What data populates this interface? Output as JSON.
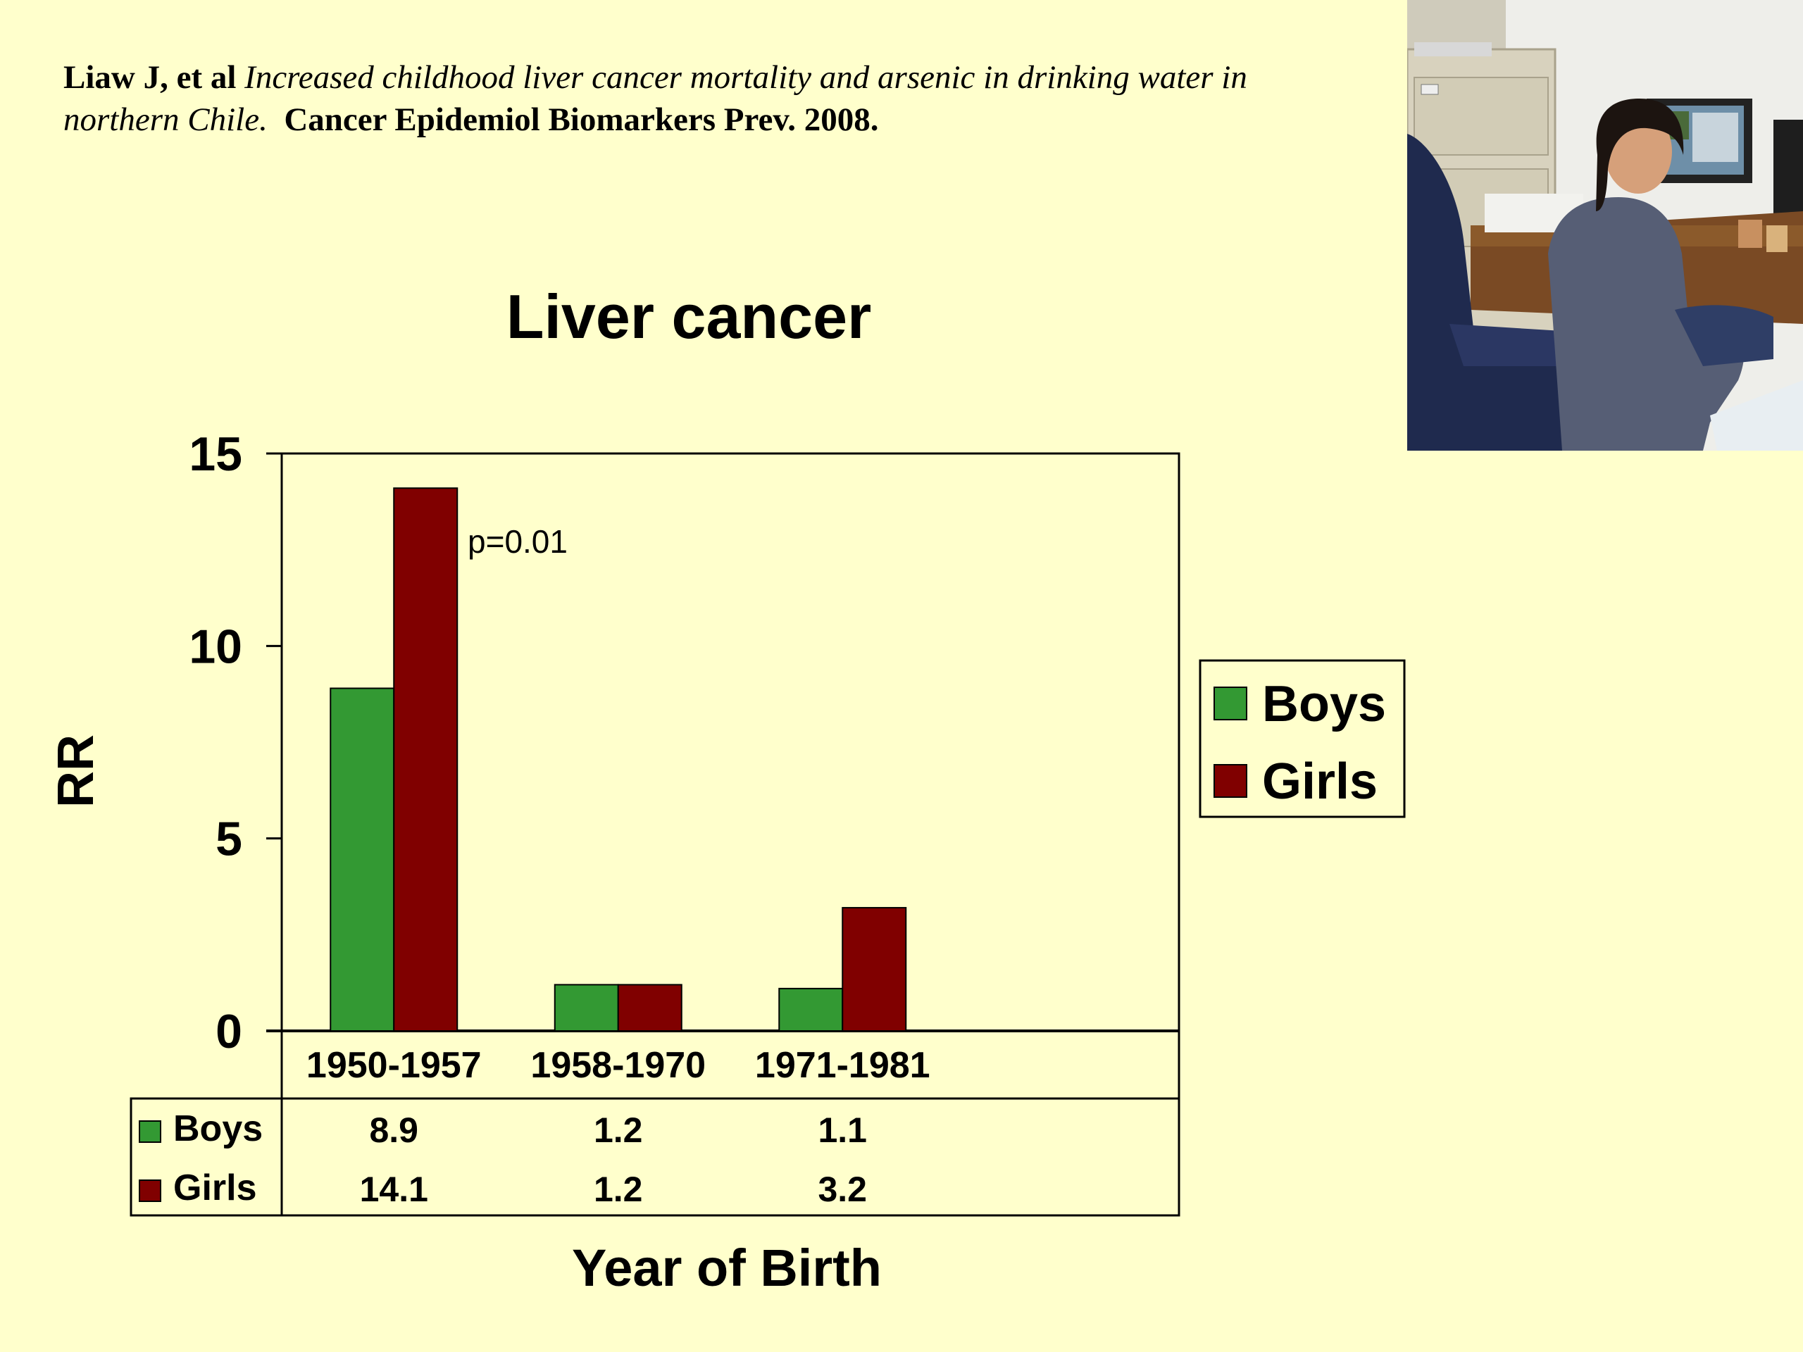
{
  "citation": {
    "authors": "Liaw J, et al",
    "article_title": "Increased childhood liver cancer mortality and arsenic in drinking water in northern Chile.",
    "journal": "Cancer Epidemiol Biomarkers Prev. 2008."
  },
  "photo": {
    "description_icon": "photo-of-researcher-at-desk"
  },
  "chart_data": {
    "type": "bar",
    "title": "Liver cancer",
    "xlabel": "Year of Birth",
    "ylabel": "RR",
    "categories": [
      "1950-1957",
      "1958-1970",
      "1971-1981"
    ],
    "series": [
      {
        "name": "Boys",
        "values": [
          8.9,
          1.2,
          1.1
        ],
        "labels": [
          "8.9",
          "1.2",
          "1.1"
        ],
        "color": "#339933"
      },
      {
        "name": "Girls",
        "values": [
          14.1,
          1.2,
          3.2
        ],
        "labels": [
          "14.1",
          "1.2",
          "3.2"
        ],
        "color": "#800000"
      }
    ],
    "ylim": [
      0,
      15
    ],
    "yticks": [
      0,
      5,
      10,
      15
    ],
    "annotation": "p=0.01",
    "legend_position": "right",
    "data_table": true,
    "grid": false
  }
}
